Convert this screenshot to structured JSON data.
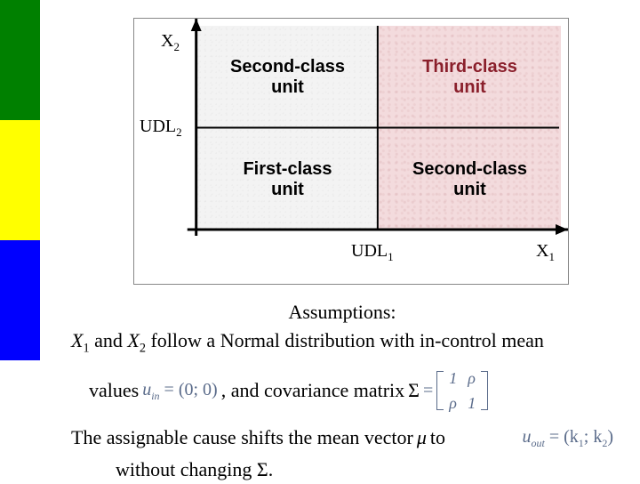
{
  "stripes": {
    "colors": [
      "#008000",
      "#ffff00",
      "#0000ff"
    ]
  },
  "diagram": {
    "quads": {
      "tl": {
        "label": "Second-class unit",
        "fontsize": 20,
        "color": "#000000",
        "bg": "gray"
      },
      "tr": {
        "label": "Third-class unit",
        "fontsize": 20,
        "color": "#8a1f2b",
        "bg": "pink"
      },
      "bl": {
        "label": "First-class unit",
        "fontsize": 20,
        "color": "#000000",
        "bg": "gray"
      },
      "br": {
        "label": "Second-class unit",
        "fontsize": 20,
        "color": "#000000",
        "bg": "pink"
      }
    },
    "border_color": "#888888",
    "axis_labels": {
      "yaxis": "X",
      "yaxis_sub": "2",
      "xaxis": "X",
      "xaxis_sub": "1",
      "udl_y": "UDL",
      "udl_y_sub": "2",
      "udl_x": "UDL",
      "udl_x_sub": "1"
    },
    "axis_color": "#000000",
    "axis_width": 3
  },
  "text": {
    "line1_center": "Assumptions:",
    "line2_pre": "X",
    "line2_pre_sub": "1",
    "line2_mid": " and ",
    "line2_pre2": "X",
    "line2_pre2_sub": "2",
    "line2_rest": " follow a Normal distribution with in-control mean",
    "line3_values": "values",
    "uin": "u",
    "uin_sub": "in",
    "uin_eq": " = (0; 0)",
    "line3_mid": " , and covariance matrix ",
    "Sigma": "Σ",
    "eq": " = ",
    "matrix": {
      "a11": "1",
      "a12": "ρ",
      "a21": "ρ",
      "a22": "1"
    },
    "line4": "The assignable cause shifts the mean vector ",
    "mu": "μ",
    "line4_to": "  to",
    "uout": "u",
    "uout_sub": "out",
    "uout_eq": " = (k",
    "k1_sub": "1",
    "uout_mid": "; k",
    "k2_sub": "2",
    "uout_end": ")",
    "line5": "without changing ",
    "Sigma2": "Σ",
    "line5_end": "."
  }
}
